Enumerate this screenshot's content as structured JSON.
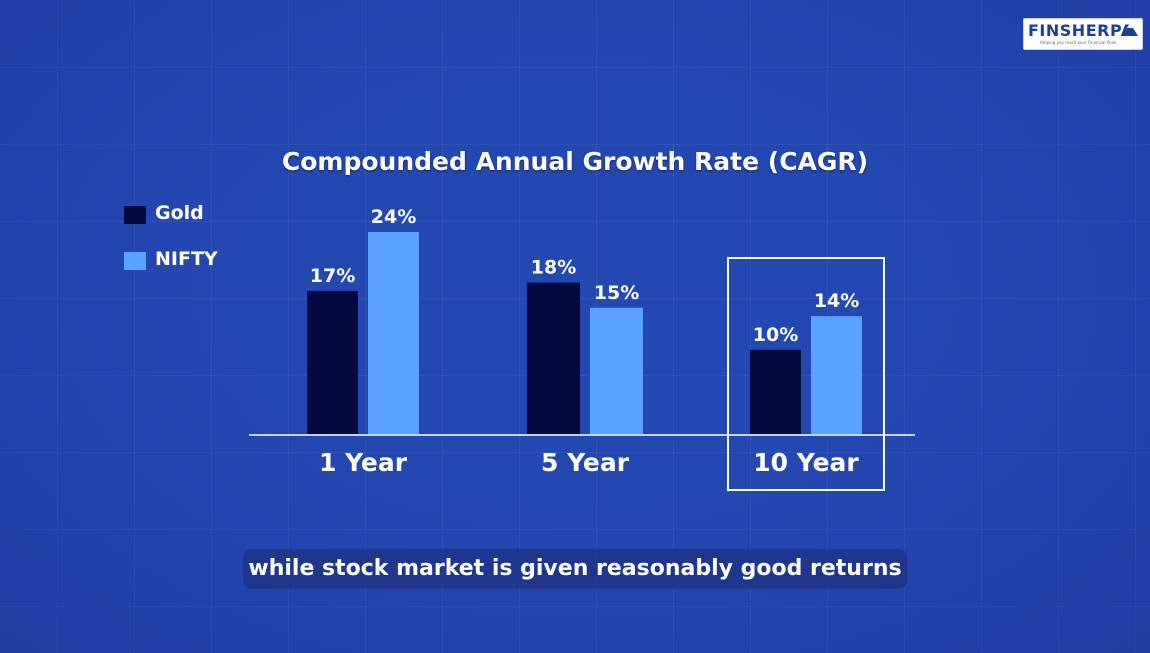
{
  "brand": {
    "name": "FINSHERPA",
    "tagline": "Helping you reach your Financial Peak"
  },
  "caption": "while stock market is given reasonably good returns",
  "colors": {
    "background": "#2448b2",
    "gold": "#050a3e",
    "nifty": "#5aa2ff"
  },
  "chart_data": {
    "type": "bar",
    "title": "Compounded Annual Growth Rate (CAGR)",
    "categories": [
      "1 Year",
      "5 Year",
      "10 Year"
    ],
    "series": [
      {
        "name": "Gold",
        "values": [
          17,
          18,
          10
        ],
        "labels": [
          "17%",
          "18%",
          "10%"
        ],
        "color": "#050a3e"
      },
      {
        "name": "NIFTY",
        "values": [
          24,
          15,
          14
        ],
        "labels": [
          "24%",
          "15%",
          "14%"
        ],
        "color": "#5aa2ff"
      }
    ],
    "ylim": [
      0,
      24
    ],
    "xlabel": "",
    "ylabel": "",
    "legend": "top-left",
    "grid": false,
    "highlighted_category": "10 Year"
  }
}
